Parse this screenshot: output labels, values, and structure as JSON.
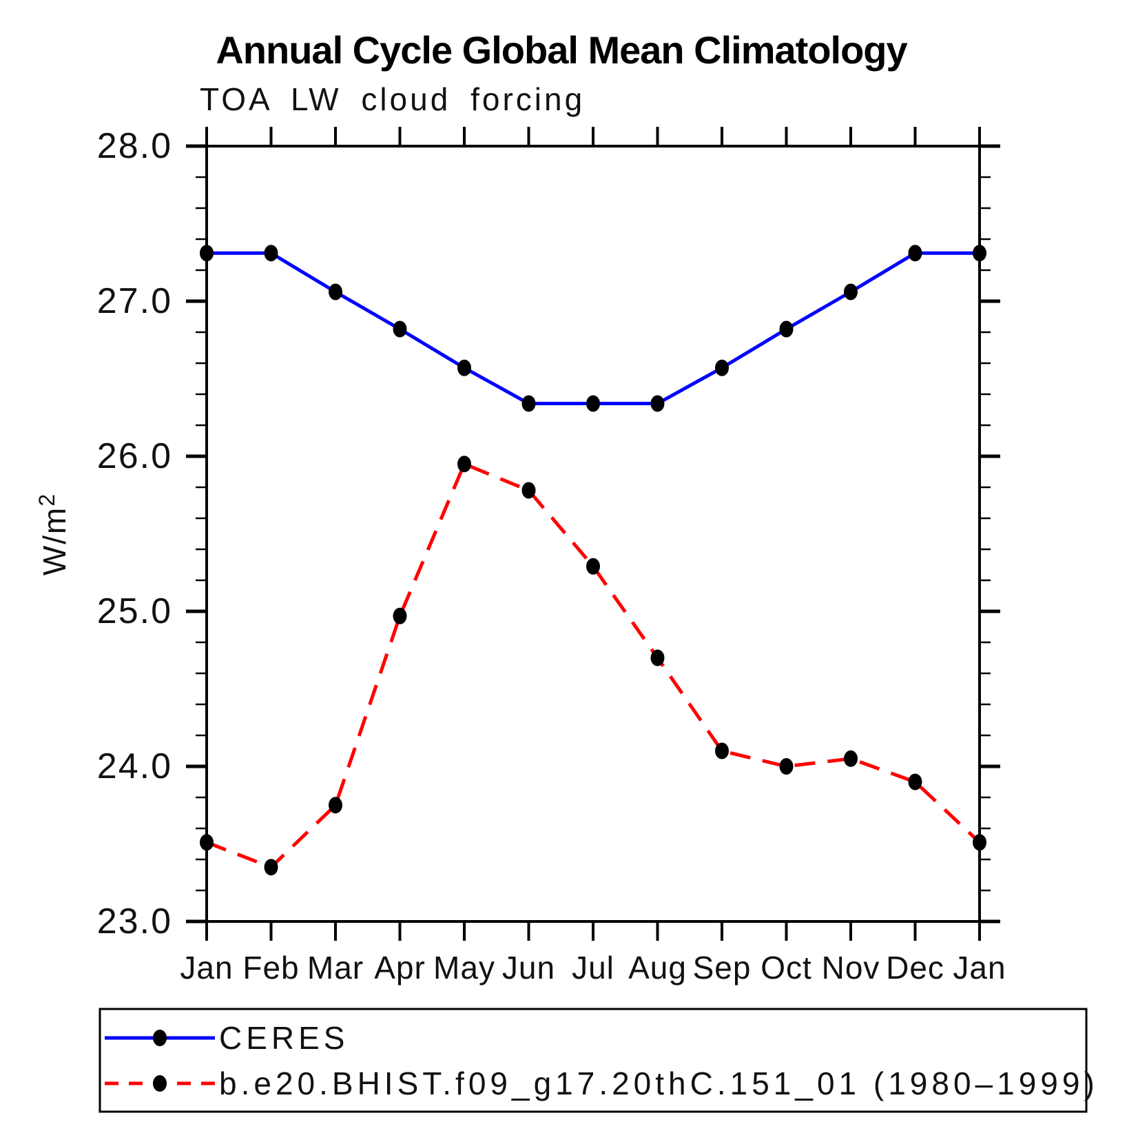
{
  "header": {
    "title": "Annual Cycle Global Mean Climatology",
    "subtitle": "TOA LW cloud forcing"
  },
  "axes": {
    "ylabel": "W/m²",
    "ylabel_base": "W/m",
    "ylabel_exponent": "2",
    "ytick_labels": [
      "23.0",
      "24.0",
      "25.0",
      "26.0",
      "27.0",
      "28.0"
    ]
  },
  "colors": {
    "ceres_line": "#0000ff",
    "model_line": "#ff0000",
    "marker": "#000000",
    "axis": "#000000",
    "background": "#ffffff"
  },
  "chart_data": {
    "type": "line",
    "title": "Annual Cycle Global Mean Climatology",
    "subtitle": "TOA LW cloud forcing",
    "xlabel": "",
    "ylabel": "W/m²",
    "ylim": [
      23.0,
      28.0
    ],
    "ytick_interval": 1.0,
    "minor_tick_interval": 0.2,
    "grid": false,
    "legend_position": "bottom-left box",
    "categories": [
      "Jan",
      "Feb",
      "Mar",
      "Apr",
      "May",
      "Jun",
      "Jul",
      "Aug",
      "Sep",
      "Oct",
      "Nov",
      "Dec",
      "Jan"
    ],
    "series": [
      {
        "name": "CERES",
        "color": "#0000ff",
        "line_style": "solid",
        "marker": "filled-ellipse",
        "marker_color": "#000000",
        "values": [
          27.31,
          27.31,
          27.06,
          26.82,
          26.57,
          26.34,
          26.34,
          26.34,
          26.57,
          26.82,
          27.06,
          27.31,
          27.31
        ]
      },
      {
        "name": "b.e20.BHIST.f09_g17.20thC.151_01 (1980–1999)",
        "color": "#ff0000",
        "line_style": "dashed",
        "marker": "filled-ellipse",
        "marker_color": "#000000",
        "values": [
          23.51,
          23.35,
          23.75,
          24.97,
          25.95,
          25.78,
          25.29,
          24.7,
          24.1,
          24.0,
          24.05,
          23.9,
          23.51
        ]
      }
    ]
  }
}
